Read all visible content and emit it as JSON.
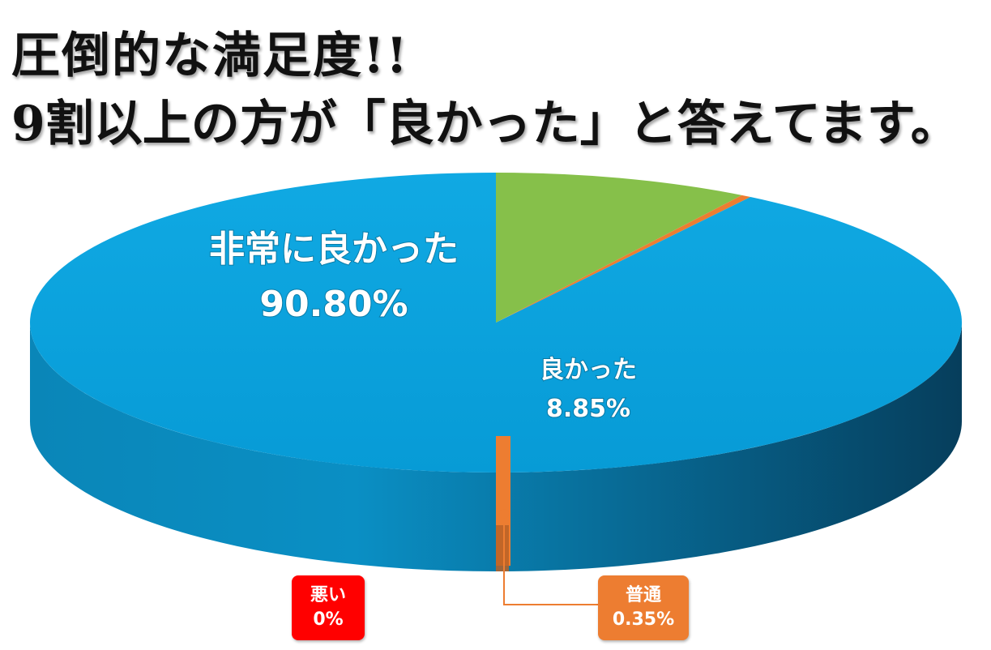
{
  "header": {
    "title": "圧倒的な満足度!!",
    "subtitle": "9割以上の方が「良かった」と答えてます。"
  },
  "colors": {
    "very_good": "#0ba3dd",
    "good": "#86c04a",
    "normal": "#ed7d31",
    "bad": "#ff0000"
  },
  "chart_data": {
    "type": "pie",
    "style": "3d",
    "title": "",
    "slices": [
      {
        "label": "非常に良かった",
        "value": 90.8,
        "display": "90.80%",
        "color": "#0ba3dd"
      },
      {
        "label": "良かった",
        "value": 8.85,
        "display": "8.85%",
        "color": "#86c04a"
      },
      {
        "label": "普通",
        "value": 0.35,
        "display": "0.35%",
        "color": "#ed7d31"
      },
      {
        "label": "悪い",
        "value": 0,
        "display": "0%",
        "color": "#ff0000"
      }
    ]
  }
}
